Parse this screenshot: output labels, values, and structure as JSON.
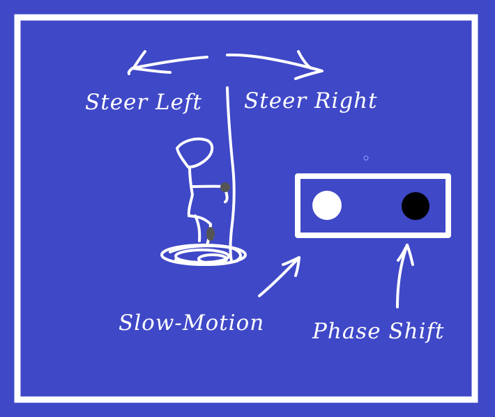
{
  "colors": {
    "background": "#3f48c7",
    "ink": "#ffffff",
    "joint": "#555555",
    "dot_dark": "#000000"
  },
  "labels": {
    "steer_left": "Steer Left",
    "steer_right": "Steer Right",
    "slow_motion": "Slow-Motion",
    "phase_shift": "Phase Shift"
  },
  "phase_toggle": {
    "left_dot_color": "#ffffff",
    "right_dot_color": "#000000"
  }
}
